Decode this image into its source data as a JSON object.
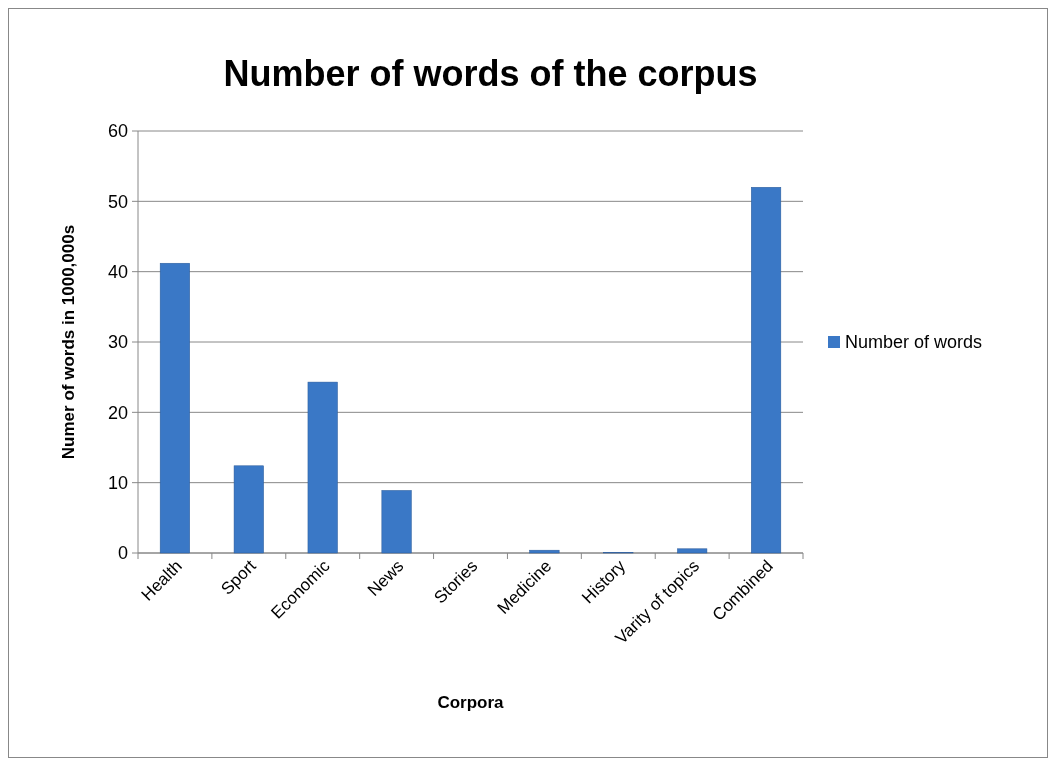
{
  "chart_data": {
    "type": "bar",
    "title": "Number of words of the corpus",
    "xlabel": "Corpora",
    "ylabel": "Numer of words in 1000,000s",
    "categories": [
      "Health",
      "Sport",
      "Economic",
      "News",
      "Stories",
      "Medicine",
      "History",
      "Varity of topics",
      "Combined"
    ],
    "series": [
      {
        "name": "Number of words",
        "color": "#3a78c6",
        "values": [
          41.2,
          12.4,
          24.3,
          8.9,
          0,
          0.4,
          0.1,
          0.6,
          52
        ]
      }
    ],
    "ylim": [
      0,
      60
    ],
    "yticks": [
      0,
      10,
      20,
      30,
      40,
      50,
      60
    ],
    "grid": "y",
    "legend": "right"
  }
}
